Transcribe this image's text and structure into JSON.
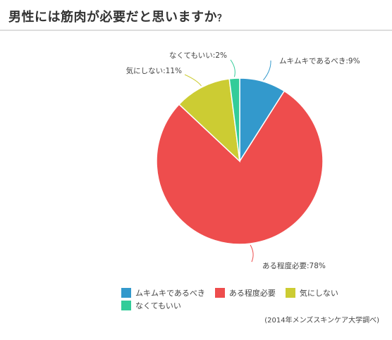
{
  "title": "男性には筋肉が必要だと思いますか",
  "title_suffix": "？",
  "source": "(2014年メンズスキンケア大学調べ)",
  "chart_data": {
    "type": "pie",
    "categories": [
      "ムキムキであるべき",
      "ある程度必要",
      "気にしない",
      "なくてもいい"
    ],
    "values": [
      9,
      78,
      11,
      2
    ],
    "unit": "%",
    "colors": [
      "#3399cc",
      "#ee4d4d",
      "#cccc33",
      "#33cc99"
    ],
    "slice_labels": [
      "ムキムキであるべき:9%",
      "ある程度必要:78%",
      "気にしない:11%",
      "なくてもいい:2%"
    ],
    "legend_position": "bottom"
  }
}
